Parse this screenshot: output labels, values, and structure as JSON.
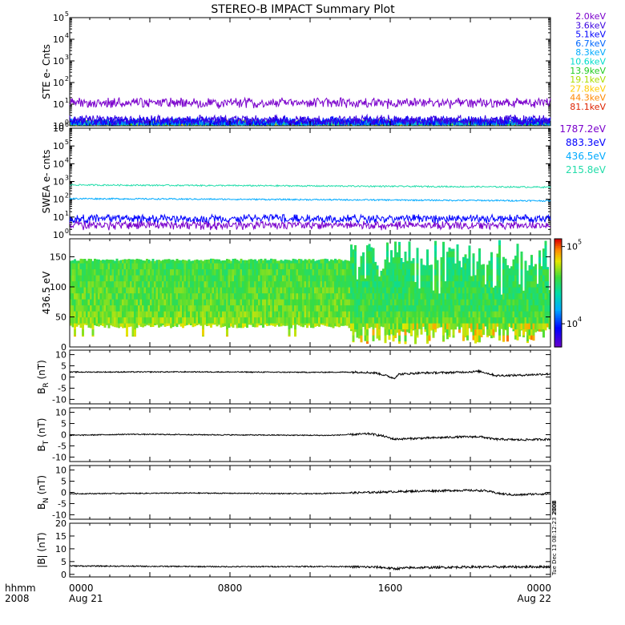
{
  "chart_data": {
    "type": "line",
    "title": "STEREO-B IMPACT Summary Plot",
    "footer": {
      "row1_left": "hhmm",
      "row2_left": "2008",
      "time_ticks": [
        {
          "t": 0,
          "top": "0000",
          "bottom": "Aug 21"
        },
        {
          "t": 8,
          "top": "0800",
          "bottom": ""
        },
        {
          "t": 16,
          "top": "1600",
          "bottom": ""
        },
        {
          "t": 24,
          "top": "0000",
          "bottom": "Aug 22"
        }
      ],
      "xrange_hours": [
        0,
        24
      ]
    },
    "side_notes": [
      "2008",
      "Tue Dec 13 08:12:23 2008"
    ],
    "panels": [
      {
        "id": "ste",
        "kind": "log",
        "ylabel": "STE e- Cnts",
        "ylim_exp": [
          0,
          5
        ],
        "tick_labels": [
          "10",
          "10",
          "10",
          "10",
          "10",
          "10"
        ],
        "tick_exps": [
          "0",
          "1",
          "2",
          "3",
          "4",
          "5"
        ],
        "series": [
          {
            "name": "2.0keV",
            "color": "#7a00cc",
            "level": 10
          },
          {
            "name": "3.6keV",
            "color": "#3a00e0",
            "level": 1.6
          },
          {
            "name": "5.1keV",
            "color": "#0000ff",
            "level": 1.4
          },
          {
            "name": "6.7keV",
            "color": "#0066ff",
            "level": 1.2
          },
          {
            "name": "8.3keV",
            "color": "#00aaff",
            "level": 1.1
          },
          {
            "name": "10.6keV",
            "color": "#00ddcc",
            "level": 1.0
          },
          {
            "name": "13.9keV",
            "color": "#22cc22",
            "level": 1.0
          },
          {
            "name": "19.1keV",
            "color": "#aadd00",
            "level": 1.0
          },
          {
            "name": "27.8keV",
            "color": "#ffcc00",
            "level": 1.0
          },
          {
            "name": "44.3keV",
            "color": "#ff8800",
            "level": 1.0
          },
          {
            "name": "81.1keV",
            "color": "#dd2200",
            "level": 1.0
          }
        ]
      },
      {
        "id": "swea",
        "kind": "log",
        "ylabel": "SWEA e- cnts",
        "ylim_exp": [
          0,
          6
        ],
        "tick_labels": [
          "10",
          "10",
          "10",
          "10",
          "10",
          "10",
          "10"
        ],
        "tick_exps": [
          "0",
          "1",
          "2",
          "3",
          "4",
          "5",
          "6"
        ],
        "series": [
          {
            "name": "1787.2eV",
            "color": "#7a00cc",
            "level": 3
          },
          {
            "name": "883.3eV",
            "color": "#0000ff",
            "level": 7
          },
          {
            "name": "436.5eV",
            "color": "#00aaff",
            "level": 110
          },
          {
            "name": "215.8eV",
            "color": "#22ddaa",
            "level": 650
          }
        ]
      },
      {
        "id": "pad",
        "kind": "spectrogram",
        "ylabel": "436.5 eV",
        "ylim": [
          0,
          180
        ],
        "yticks": [
          0,
          50,
          100,
          150
        ],
        "colorbar": {
          "labels": [
            {
              "base": "10",
              "exp": "5",
              "v": 5
            },
            {
              "base": "10",
              "exp": "4",
              "v": 4
            }
          ],
          "range_exp": [
            3.7,
            5.1
          ]
        }
      },
      {
        "id": "br",
        "kind": "linear",
        "ylabel_main": "B",
        "ylabel_sub": "R",
        "ylabel_unit": " (nT)",
        "ylim": [
          -12,
          12
        ],
        "yticks": [
          -10,
          -5,
          0,
          5,
          10
        ],
        "profile": [
          [
            0,
            2.2
          ],
          [
            6,
            2.3
          ],
          [
            12,
            2.1
          ],
          [
            14.5,
            2.2
          ],
          [
            15.3,
            1.8
          ],
          [
            15.8,
            0.6
          ],
          [
            16.2,
            -0.6
          ],
          [
            16.4,
            1.2
          ],
          [
            17.5,
            1.8
          ],
          [
            19,
            2.0
          ],
          [
            20.5,
            2.5
          ],
          [
            21.3,
            0.6
          ],
          [
            22.5,
            0.8
          ],
          [
            24,
            1.4
          ]
        ]
      },
      {
        "id": "bt",
        "kind": "linear",
        "ylabel_main": "B",
        "ylabel_sub": "T",
        "ylabel_unit": " (nT)",
        "ylim": [
          -12,
          12
        ],
        "yticks": [
          -10,
          -5,
          0,
          5,
          10
        ],
        "profile": [
          [
            0,
            -0.3
          ],
          [
            3,
            0.2
          ],
          [
            8,
            -0.1
          ],
          [
            13,
            -0.3
          ],
          [
            15,
            0.4
          ],
          [
            15.6,
            -0.5
          ],
          [
            16.2,
            -2.0
          ],
          [
            17.5,
            -1.6
          ],
          [
            19.5,
            -1.0
          ],
          [
            20.5,
            -0.9
          ],
          [
            21.2,
            -2.0
          ],
          [
            22.5,
            -2.3
          ],
          [
            24,
            -2.0
          ]
        ]
      },
      {
        "id": "bn",
        "kind": "linear",
        "ylabel_main": "B",
        "ylabel_sub": "N",
        "ylabel_unit": " (nT)",
        "ylim": [
          -12,
          12
        ],
        "yticks": [
          -10,
          -5,
          0,
          5,
          10
        ],
        "profile": [
          [
            0,
            -0.6
          ],
          [
            6,
            -0.3
          ],
          [
            12,
            -0.6
          ],
          [
            15,
            0.0
          ],
          [
            17,
            0.5
          ],
          [
            19.5,
            0.9
          ],
          [
            20.7,
            0.8
          ],
          [
            21.5,
            -0.6
          ],
          [
            22.3,
            -1.2
          ],
          [
            23,
            -0.8
          ],
          [
            24,
            -0.6
          ]
        ]
      },
      {
        "id": "bmag",
        "kind": "linear",
        "ylabel_main": "|B| (nT)",
        "ylabel_sub": "",
        "ylabel_unit": "",
        "ylim": [
          -1,
          20
        ],
        "yticks": [
          0,
          5,
          10,
          15,
          20
        ],
        "profile": [
          [
            0,
            3.3
          ],
          [
            8,
            3.0
          ],
          [
            13,
            3.1
          ],
          [
            15.5,
            2.8
          ],
          [
            16.2,
            2.2
          ],
          [
            17,
            2.6
          ],
          [
            20,
            2.9
          ],
          [
            22,
            2.9
          ],
          [
            24,
            3.0
          ]
        ]
      }
    ]
  }
}
